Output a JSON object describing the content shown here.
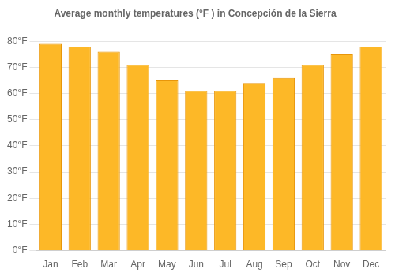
{
  "chart_data": {
    "type": "bar",
    "title": "Average monthly temperatures (°F ) in Concepción de la Sierra",
    "categories": [
      "Jan",
      "Feb",
      "Mar",
      "Apr",
      "May",
      "Jun",
      "Jul",
      "Aug",
      "Sep",
      "Oct",
      "Nov",
      "Dec"
    ],
    "values": [
      79,
      78,
      76,
      71,
      65,
      61,
      61,
      64,
      66,
      71,
      75,
      78
    ],
    "color": "#FDB827",
    "ylim": [
      0,
      86
    ],
    "yticks": [
      {
        "value": 0,
        "label": "0°F"
      },
      {
        "value": 10,
        "label": "10°F"
      },
      {
        "value": 20,
        "label": "20°F"
      },
      {
        "value": 30,
        "label": "30°F"
      },
      {
        "value": 40,
        "label": "40°F"
      },
      {
        "value": 50,
        "label": "50°F"
      },
      {
        "value": 60,
        "label": "60°F"
      },
      {
        "value": 70,
        "label": "70°F"
      },
      {
        "value": 80,
        "label": "80°F"
      }
    ],
    "grid": true
  }
}
